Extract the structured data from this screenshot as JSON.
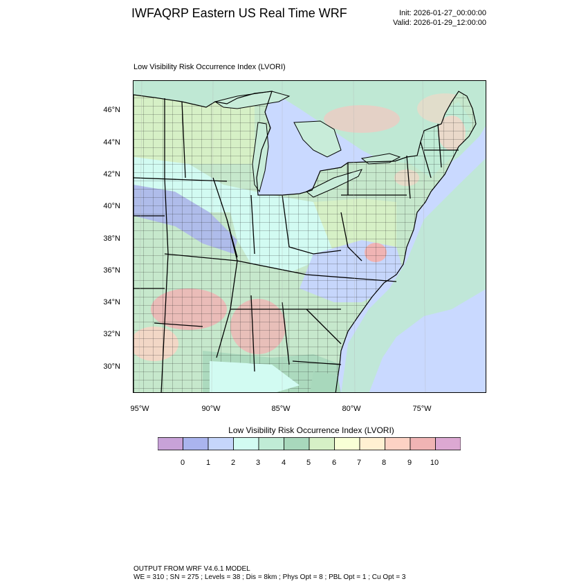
{
  "header": {
    "title": "IWFAQRP Eastern US Real Time WRF",
    "init": "Init: 2026-01-27_00:00:00",
    "valid": "Valid: 2026-01-29_12:00:00"
  },
  "plot": {
    "title": "Low Visibility Risk Occurrence Index   (LVORI)"
  },
  "map": {
    "lat_labels": [
      "46°N",
      "44°N",
      "42°N",
      "40°N",
      "38°N",
      "36°N",
      "34°N",
      "32°N",
      "30°N"
    ],
    "lon_labels": [
      "95°W",
      "90°W",
      "85°W",
      "80°W",
      "75°W"
    ],
    "lat_values": [
      46,
      44,
      42,
      40,
      38,
      36,
      34,
      32,
      30
    ],
    "lon_values": [
      -95,
      -90,
      -85,
      -80,
      -75
    ],
    "colors": {
      "ocean": "#c9d9ff",
      "canada": "#bfe8d4",
      "lake": "#c8ecd9"
    }
  },
  "colorbar": {
    "title": "Low Visibility Risk Occurrence Index  (LVORI)",
    "labels": [
      "0",
      "1",
      "2",
      "3",
      "4",
      "5",
      "6",
      "7",
      "8",
      "9",
      "10"
    ],
    "colors": [
      "#c8a2d8",
      "#aab4ee",
      "#c6d6fb",
      "#d2fbf2",
      "#c0ecd6",
      "#a8d8bc",
      "#d6f0c6",
      "#f8ffd6",
      "#fff0d2",
      "#fcd2c4",
      "#f0b4b4",
      "#dca8d2"
    ]
  },
  "footer": {
    "line1": "OUTPUT FROM WRF V4.6.1 MODEL",
    "line2": "WE = 310 ; SN = 275 ; Levels = 38 ; Dis = 8km ; Phys Opt = 8 ; PBL Opt = 1 ; Cu Opt = 3"
  }
}
